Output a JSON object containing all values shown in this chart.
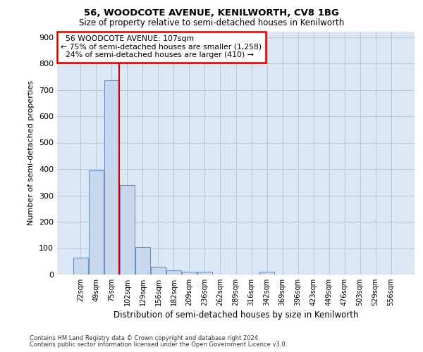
{
  "title1": "56, WOODCOTE AVENUE, KENILWORTH, CV8 1BG",
  "title2": "Size of property relative to semi-detached houses in Kenilworth",
  "xlabel": "Distribution of semi-detached houses by size in Kenilworth",
  "ylabel": "Number of semi-detached properties",
  "categories": [
    "22sqm",
    "49sqm",
    "75sqm",
    "102sqm",
    "129sqm",
    "156sqm",
    "182sqm",
    "209sqm",
    "236sqm",
    "262sqm",
    "289sqm",
    "316sqm",
    "342sqm",
    "369sqm",
    "396sqm",
    "423sqm",
    "449sqm",
    "476sqm",
    "503sqm",
    "529sqm",
    "556sqm"
  ],
  "values": [
    63,
    395,
    737,
    338,
    105,
    29,
    16,
    12,
    10,
    0,
    0,
    0,
    10,
    0,
    0,
    0,
    0,
    0,
    0,
    0,
    0
  ],
  "bar_color": "#c8d8ee",
  "bar_edge_color": "#7090c0",
  "property_label": "56 WOODCOTE AVENUE: 107sqm",
  "pct_smaller": 75,
  "n_smaller": 1258,
  "pct_larger": 24,
  "n_larger": 410,
  "vline_x_index": 3,
  "ylim": [
    0,
    920
  ],
  "yticks": [
    0,
    100,
    200,
    300,
    400,
    500,
    600,
    700,
    800,
    900
  ],
  "box_color": "#cc0000",
  "vline_color": "#cc0000",
  "footnote1": "Contains HM Land Registry data © Crown copyright and database right 2024.",
  "footnote2": "Contains public sector information licensed under the Open Government Licence v3.0.",
  "bg_color": "#dce8f5",
  "grid_color": "#b8c8dc"
}
